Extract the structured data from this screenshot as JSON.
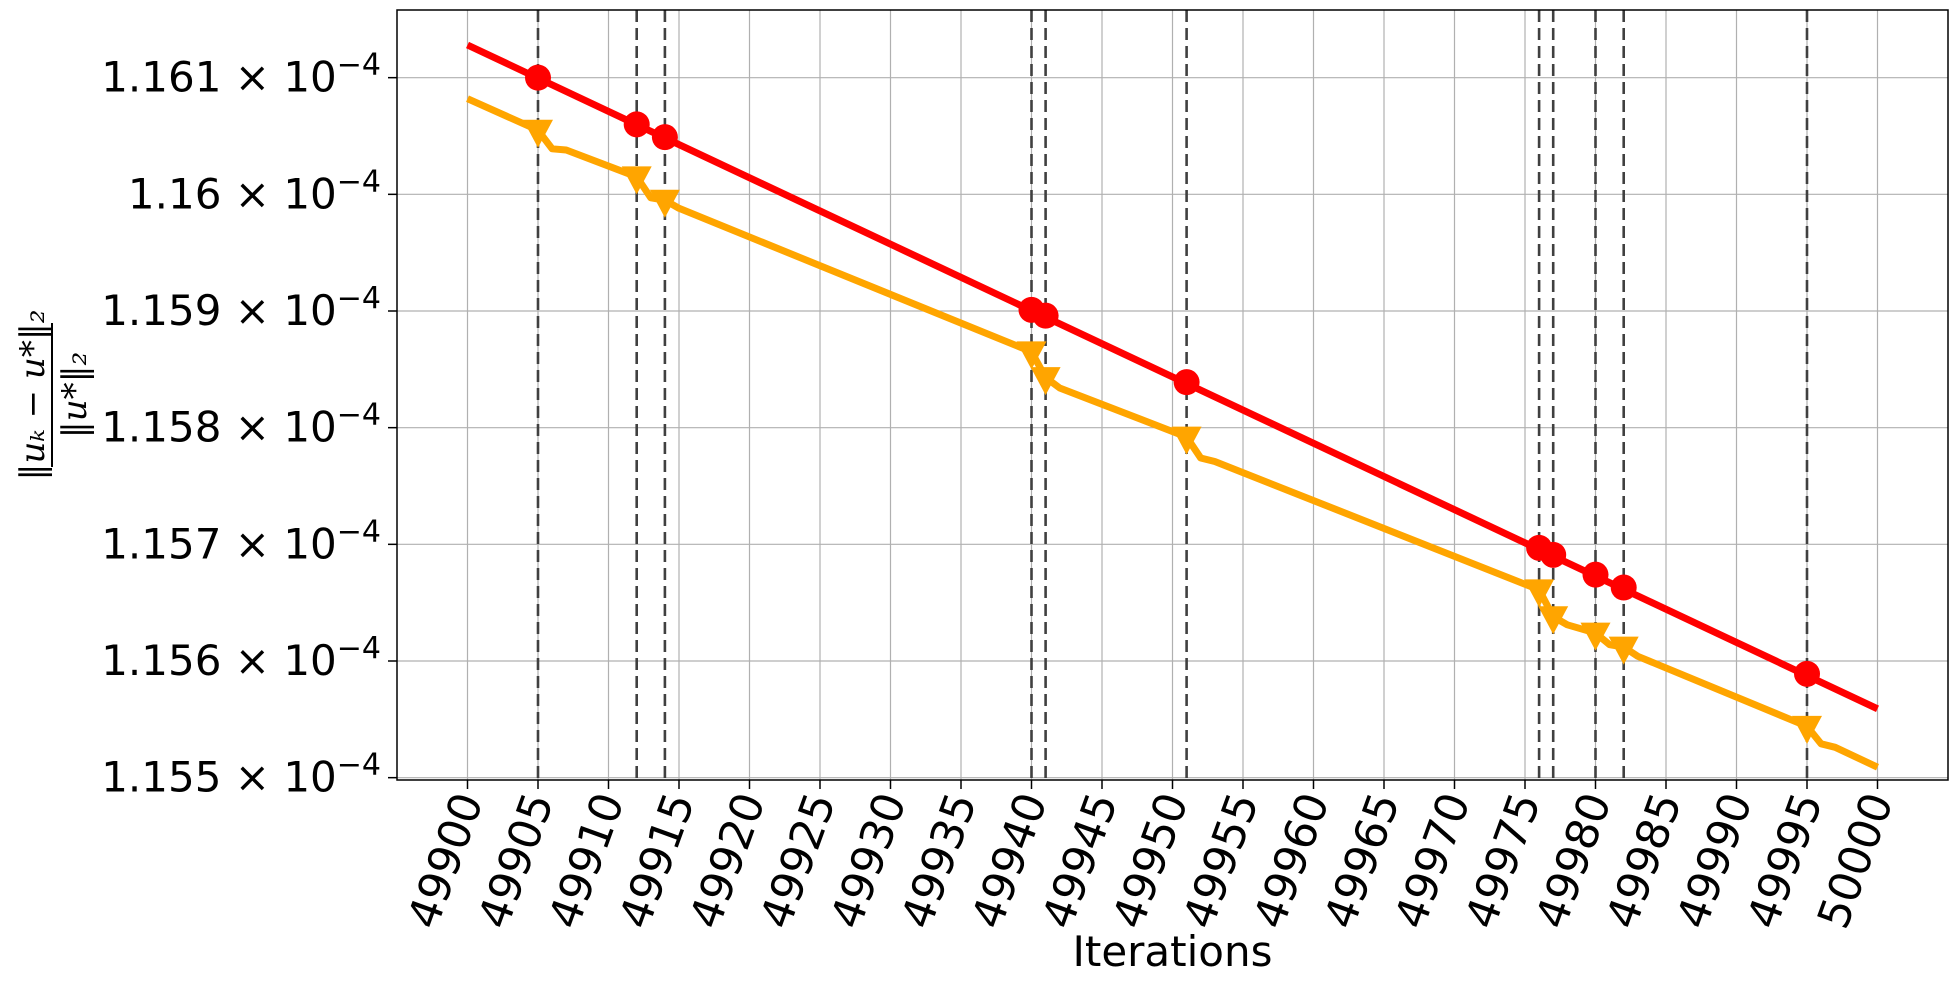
{
  "chart_data": {
    "type": "line",
    "title": "",
    "xlabel": "Iterations",
    "ylabel": "‖u_k − u*‖₂ / ‖u*‖₂",
    "ylabel_numerator": "‖uₖ − u*‖₂",
    "ylabel_denominator": "‖u*‖₂",
    "xlim": [
      49895,
      50005
    ],
    "ylim": [
      0.000115498,
      0.000116158
    ],
    "grid": true,
    "x_ticks": [
      49900,
      49905,
      49910,
      49915,
      49920,
      49925,
      49930,
      49935,
      49940,
      49945,
      49950,
      49955,
      49960,
      49965,
      49970,
      49975,
      49980,
      49985,
      49990,
      49995,
      50000
    ],
    "x_tick_labels": [
      "49900",
      "49905",
      "49910",
      "49915",
      "49920",
      "49925",
      "49930",
      "49935",
      "49940",
      "49945",
      "49950",
      "49955",
      "49960",
      "49965",
      "49970",
      "49975",
      "49980",
      "49985",
      "49990",
      "49995",
      "50000"
    ],
    "y_ticks": [
      0.0001155,
      0.0001156,
      0.0001157,
      0.0001158,
      0.0001159,
      0.000116,
      0.0001161
    ],
    "y_tick_labels": [
      {
        "mantissa": "1.155",
        "exponent": "−4"
      },
      {
        "mantissa": "1.156",
        "exponent": "−4"
      },
      {
        "mantissa": "1.157",
        "exponent": "−4"
      },
      {
        "mantissa": "1.158",
        "exponent": "−4"
      },
      {
        "mantissa": "1.159",
        "exponent": "−4"
      },
      {
        "mantissa": "1.16",
        "exponent": "−4"
      },
      {
        "mantissa": "1.161",
        "exponent": "−4"
      }
    ],
    "vlines": [
      49905,
      49912,
      49914,
      49940,
      49941,
      49951,
      49976,
      49977,
      49980,
      49982,
      49995
    ],
    "series": [
      {
        "color": "#ff0000",
        "marker": "circle",
        "x": [
          49900,
          50000
        ],
        "y": [
          0.000116128,
          0.000115559
        ],
        "marker_x": [
          49905,
          49912,
          49914,
          49940,
          49941,
          49951,
          49976,
          49977,
          49980,
          49982,
          49995
        ],
        "marker_y": [
          0.0001161,
          0.00011606,
          0.000116049,
          0.000115901,
          0.000115896,
          0.000115839,
          0.000115697,
          0.000115691,
          0.000115674,
          0.000115663,
          0.000115589
        ]
      },
      {
        "color": "#ffa500",
        "marker": "triangle-down",
        "x": [
          49900,
          49905,
          49906,
          49907,
          49912,
          49913,
          49914,
          49915,
          49940,
          49941,
          49942,
          49951,
          49952,
          49953,
          49976,
          49977,
          49978,
          49980,
          49981,
          49982,
          49983,
          49995,
          49996,
          49997,
          50000
        ],
        "y": [
          0.000116082,
          0.000116055,
          0.000116039,
          0.000116038,
          0.000116015,
          0.000115997,
          0.000115995,
          0.000115988,
          0.000115865,
          0.000115843,
          0.000115834,
          0.000115792,
          0.000115774,
          0.000115771,
          0.000115661,
          0.000115638,
          0.000115631,
          0.000115624,
          0.000115614,
          0.000115612,
          0.000115604,
          0.000115544,
          0.000115529,
          0.000115526,
          0.000115509
        ],
        "marker_x": [
          49905,
          49912,
          49914,
          49940,
          49941,
          49951,
          49976,
          49977,
          49980,
          49982,
          49995
        ],
        "marker_y": [
          0.000116055,
          0.000116015,
          0.000115995,
          0.000115865,
          0.000115843,
          0.000115792,
          0.000115661,
          0.000115638,
          0.000115624,
          0.000115612,
          0.000115544
        ]
      }
    ]
  }
}
